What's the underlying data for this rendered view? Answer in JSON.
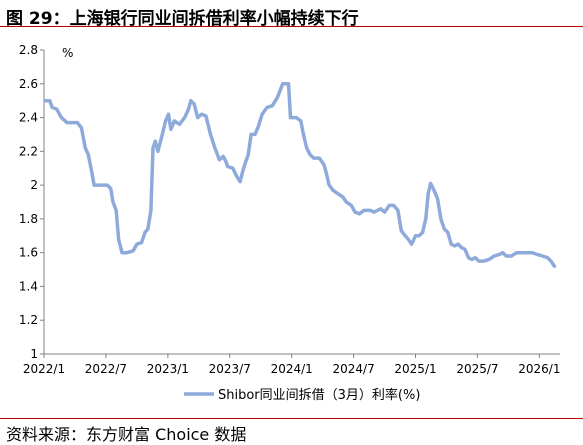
{
  "figure_title": "图 29：上海银行同业间拆借利率小幅持续下行",
  "source_text": "资料来源：东方财富 Choice 数据",
  "colors": {
    "line": "#8eaadb",
    "rule": "#c00000",
    "axis": "#808080"
  },
  "chart_data": {
    "type": "line",
    "title": "",
    "xlabel": "",
    "ylabel": "%",
    "ylim": [
      1,
      2.8
    ],
    "yticks": [
      "1",
      "1.2",
      "1.4",
      "1.6",
      "1.8",
      "2",
      "2.2",
      "2.4",
      "2.6",
      "2.8"
    ],
    "xlim": [
      "2022-01",
      "2026-03"
    ],
    "xticks": [
      "2022/1",
      "2022/7",
      "2023/1",
      "2023/7",
      "2024/1",
      "2024/7",
      "2025/1",
      "2025/7",
      "2026/1"
    ],
    "grid": false,
    "legend_position": "bottom",
    "series": [
      {
        "name": "Shibor同业间拆借（3月）利率(%)",
        "color": "#8eaadb",
        "points": [
          [
            "2022-01-04",
            2.5
          ],
          [
            "2022-01-18",
            2.5
          ],
          [
            "2022-01-25",
            2.46
          ],
          [
            "2022-02-08",
            2.45
          ],
          [
            "2022-02-22",
            2.4
          ],
          [
            "2022-03-08",
            2.37
          ],
          [
            "2022-03-22",
            2.37
          ],
          [
            "2022-04-08",
            2.37
          ],
          [
            "2022-04-20",
            2.34
          ],
          [
            "2022-05-01",
            2.22
          ],
          [
            "2022-05-10",
            2.18
          ],
          [
            "2022-05-20",
            2.08
          ],
          [
            "2022-05-27",
            2.0
          ],
          [
            "2022-06-05",
            2.0
          ],
          [
            "2022-06-20",
            2.0
          ],
          [
            "2022-07-05",
            2.0
          ],
          [
            "2022-07-15",
            1.98
          ],
          [
            "2022-07-22",
            1.9
          ],
          [
            "2022-08-01",
            1.85
          ],
          [
            "2022-08-08",
            1.68
          ],
          [
            "2022-08-18",
            1.6
          ],
          [
            "2022-09-01",
            1.6
          ],
          [
            "2022-09-20",
            1.61
          ],
          [
            "2022-10-01",
            1.65
          ],
          [
            "2022-10-15",
            1.66
          ],
          [
            "2022-10-25",
            1.72
          ],
          [
            "2022-11-03",
            1.74
          ],
          [
            "2022-11-12",
            1.85
          ],
          [
            "2022-11-18",
            2.22
          ],
          [
            "2022-11-25",
            2.26
          ],
          [
            "2022-12-02",
            2.2
          ],
          [
            "2022-12-15",
            2.3
          ],
          [
            "2022-12-25",
            2.38
          ],
          [
            "2023-01-03",
            2.42
          ],
          [
            "2023-01-10",
            2.33
          ],
          [
            "2023-01-20",
            2.38
          ],
          [
            "2023-02-05",
            2.36
          ],
          [
            "2023-02-20",
            2.4
          ],
          [
            "2023-03-01",
            2.45
          ],
          [
            "2023-03-08",
            2.5
          ],
          [
            "2023-03-18",
            2.48
          ],
          [
            "2023-03-28",
            2.4
          ],
          [
            "2023-04-10",
            2.42
          ],
          [
            "2023-04-22",
            2.41
          ],
          [
            "2023-05-05",
            2.3
          ],
          [
            "2023-05-18",
            2.22
          ],
          [
            "2023-06-01",
            2.15
          ],
          [
            "2023-06-12",
            2.17
          ],
          [
            "2023-06-20",
            2.14
          ],
          [
            "2023-06-25",
            2.11
          ],
          [
            "2023-07-10",
            2.1
          ],
          [
            "2023-07-22",
            2.05
          ],
          [
            "2023-08-01",
            2.02
          ],
          [
            "2023-08-10",
            2.09
          ],
          [
            "2023-08-18",
            2.14
          ],
          [
            "2023-08-25",
            2.18
          ],
          [
            "2023-09-03",
            2.3
          ],
          [
            "2023-09-15",
            2.3
          ],
          [
            "2023-09-25",
            2.35
          ],
          [
            "2023-10-05",
            2.42
          ],
          [
            "2023-10-20",
            2.46
          ],
          [
            "2023-11-05",
            2.47
          ],
          [
            "2023-11-20",
            2.52
          ],
          [
            "2023-12-05",
            2.6
          ],
          [
            "2023-12-22",
            2.6
          ],
          [
            "2023-12-28",
            2.4
          ],
          [
            "2024-01-15",
            2.4
          ],
          [
            "2024-01-28",
            2.38
          ],
          [
            "2024-02-05",
            2.3
          ],
          [
            "2024-02-15",
            2.22
          ],
          [
            "2024-02-25",
            2.18
          ],
          [
            "2024-03-05",
            2.16
          ],
          [
            "2024-03-22",
            2.16
          ],
          [
            "2024-04-05",
            2.12
          ],
          [
            "2024-04-12",
            2.07
          ],
          [
            "2024-04-20",
            2.0
          ],
          [
            "2024-05-01",
            1.97
          ],
          [
            "2024-05-15",
            1.95
          ],
          [
            "2024-05-30",
            1.93
          ],
          [
            "2024-06-10",
            1.9
          ],
          [
            "2024-06-25",
            1.88
          ],
          [
            "2024-07-05",
            1.84
          ],
          [
            "2024-07-18",
            1.83
          ],
          [
            "2024-08-01",
            1.85
          ],
          [
            "2024-08-20",
            1.85
          ],
          [
            "2024-09-01",
            1.84
          ],
          [
            "2024-09-10",
            1.85
          ],
          [
            "2024-09-20",
            1.86
          ],
          [
            "2024-10-01",
            1.84
          ],
          [
            "2024-10-15",
            1.88
          ],
          [
            "2024-10-28",
            1.88
          ],
          [
            "2024-11-10",
            1.85
          ],
          [
            "2024-11-20",
            1.73
          ],
          [
            "2024-12-01",
            1.7
          ],
          [
            "2024-12-10",
            1.68
          ],
          [
            "2024-12-20",
            1.65
          ],
          [
            "2025-01-01",
            1.7
          ],
          [
            "2025-01-12",
            1.7
          ],
          [
            "2025-01-22",
            1.72
          ],
          [
            "2025-02-01",
            1.8
          ],
          [
            "2025-02-08",
            1.95
          ],
          [
            "2025-02-15",
            2.01
          ],
          [
            "2025-02-25",
            1.97
          ],
          [
            "2025-03-05",
            1.92
          ],
          [
            "2025-03-15",
            1.8
          ],
          [
            "2025-03-25",
            1.74
          ],
          [
            "2025-04-05",
            1.72
          ],
          [
            "2025-04-15",
            1.65
          ],
          [
            "2025-04-25",
            1.64
          ],
          [
            "2025-05-05",
            1.65
          ],
          [
            "2025-05-15",
            1.63
          ],
          [
            "2025-05-25",
            1.62
          ],
          [
            "2025-06-05",
            1.57
          ],
          [
            "2025-06-15",
            1.56
          ],
          [
            "2025-06-25",
            1.57
          ],
          [
            "2025-07-05",
            1.55
          ],
          [
            "2025-07-20",
            1.55
          ],
          [
            "2025-08-05",
            1.56
          ],
          [
            "2025-08-20",
            1.58
          ],
          [
            "2025-09-05",
            1.59
          ],
          [
            "2025-09-15",
            1.6
          ],
          [
            "2025-09-25",
            1.58
          ],
          [
            "2025-10-10",
            1.58
          ],
          [
            "2025-10-25",
            1.6
          ],
          [
            "2025-11-10",
            1.6
          ],
          [
            "2025-11-25",
            1.6
          ],
          [
            "2025-12-10",
            1.6
          ],
          [
            "2025-12-25",
            1.59
          ],
          [
            "2026-01-10",
            1.58
          ],
          [
            "2026-01-25",
            1.57
          ],
          [
            "2026-02-05",
            1.55
          ],
          [
            "2026-02-15",
            1.52
          ]
        ]
      }
    ]
  }
}
